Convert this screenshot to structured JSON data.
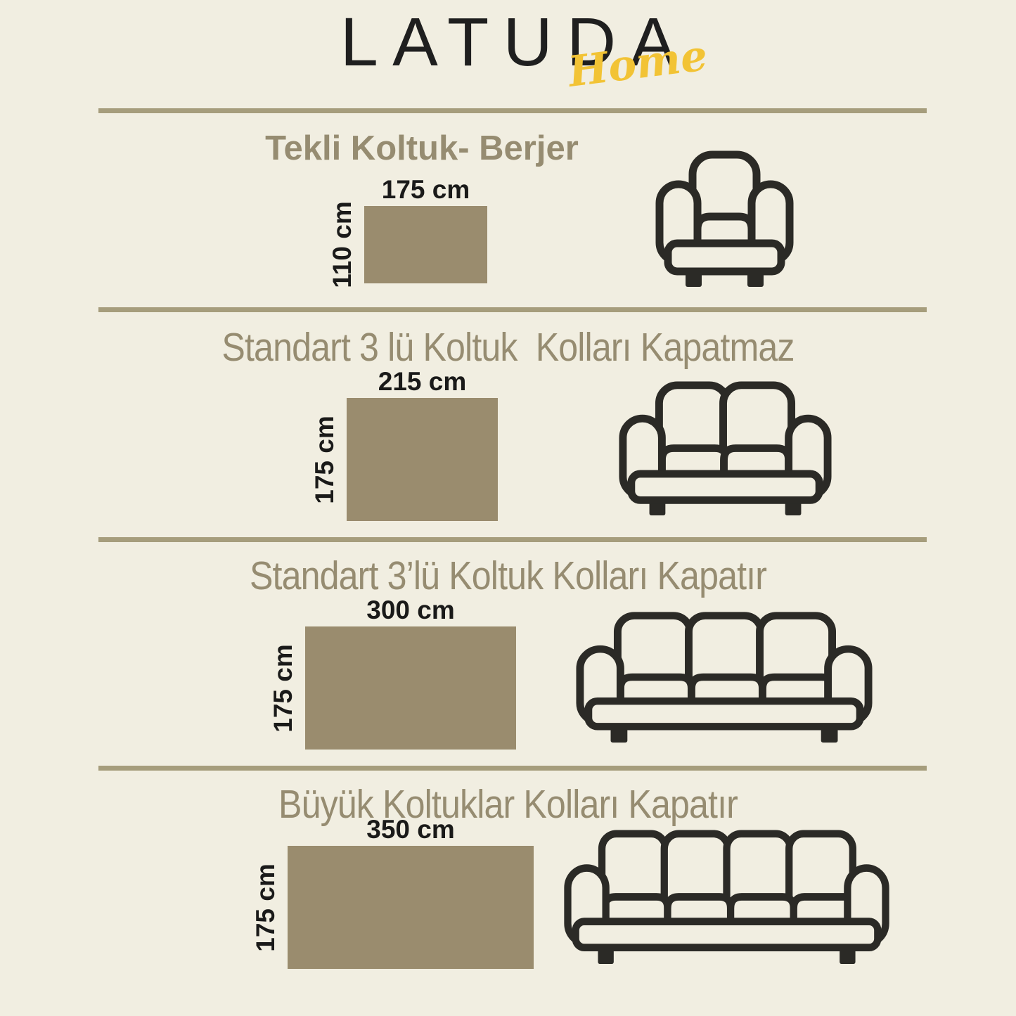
{
  "brand": {
    "name": "LATUDA",
    "tagline": "Home"
  },
  "sections": [
    {
      "title": "Tekli Koltuk- Berjer",
      "icon": "armchair-icon",
      "seats": 1,
      "cover": {
        "width_label": "175 cm",
        "height_label": "110 cm",
        "width_cm": 175,
        "height_cm": 110
      }
    },
    {
      "title": "Standart 3 lü Koltuk  Kolları Kapatmaz",
      "icon": "sofa-2-seat-icon",
      "seats": 2,
      "cover": {
        "width_label": "215 cm",
        "height_label": "175 cm",
        "width_cm": 215,
        "height_cm": 175
      }
    },
    {
      "title": "Standart 3’lü Koltuk Kolları Kapatır",
      "icon": "sofa-3-seat-icon",
      "seats": 3,
      "cover": {
        "width_label": "300 cm",
        "height_label": "175 cm",
        "width_cm": 300,
        "height_cm": 175
      }
    },
    {
      "title": "Büyük Koltuklar Kolları Kapatır",
      "icon": "sofa-4-seat-icon",
      "seats": 4,
      "cover": {
        "width_label": "350 cm",
        "height_label": "175 cm",
        "width_cm": 350,
        "height_cm": 175
      }
    }
  ],
  "colors": {
    "background": "#f1eee1",
    "rect_fill": "#9a8c6e",
    "title_text": "#968c71",
    "divider": "#a69d7c",
    "dimension_text": "#1a1a19",
    "logo_text": "#1f1f1f",
    "tagline_yellow": "#f2c335",
    "icon_stroke": "#2b2a26"
  }
}
